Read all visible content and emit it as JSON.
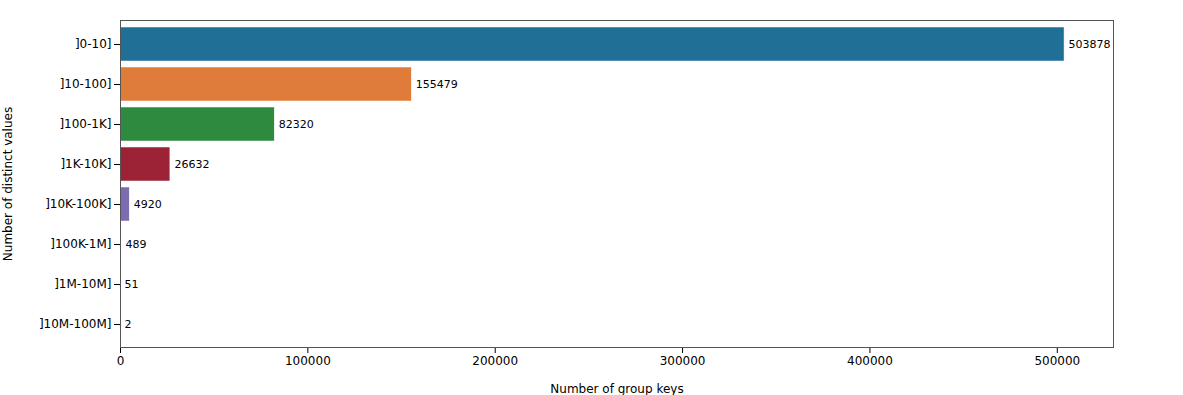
{
  "chart_data": {
    "type": "bar",
    "orientation": "horizontal",
    "categories": [
      "]0-10]",
      "]10-100]",
      "]100-1K]",
      "]1K-10K]",
      "]10K-100K]",
      "]100K-1M]",
      "]1M-10M]",
      "]10M-100M]"
    ],
    "values": [
      503878,
      155479,
      82320,
      26632,
      4920,
      489,
      51,
      2
    ],
    "colors": [
      "#1f6f96",
      "#e07c3a",
      "#2d8a3e",
      "#9b2335",
      "#7b6bb0",
      "#1f6f96",
      "#1f6f96",
      "#1f6f96"
    ],
    "xlabel": "Number of group keys",
    "ylabel": "Number of distinct values",
    "xlim": [
      0,
      530000
    ],
    "xticks": [
      0,
      100000,
      200000,
      300000,
      400000,
      500000
    ],
    "data_labels": true,
    "grid": false
  }
}
